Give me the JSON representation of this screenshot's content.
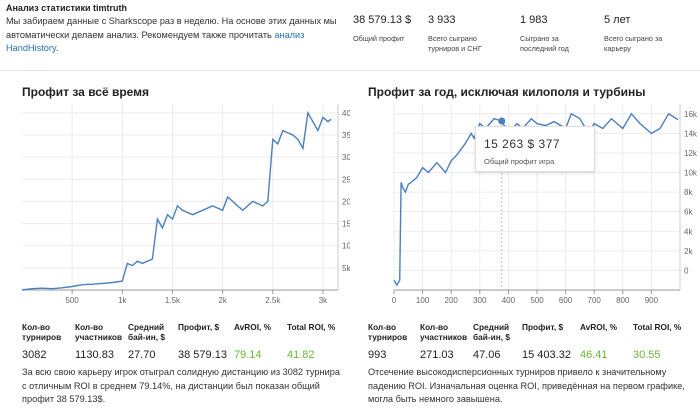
{
  "header": {
    "title": "Анализ статистики timtruth",
    "intro_text": "Мы забираем данные с Sharkscope раз в неделю. На основе этих данных мы автоматически делаем анализ. Рекомендуем также прочитать ",
    "intro_link": "анализ HandHistory",
    "intro_end": "."
  },
  "stats": [
    {
      "value": "38 579.13 $",
      "label": "Общий профит"
    },
    {
      "value": "3 933",
      "label": "Всего сыграно турниров и СНГ"
    },
    {
      "value": "1 983",
      "label": "Сыграно за последний год"
    },
    {
      "value": "5 лет",
      "label": "Всего сыграно за карьеру"
    }
  ],
  "left_panel": {
    "title": "Профит за всё время",
    "table": {
      "headers": [
        "Кол-во турниров",
        "Кол-во участников",
        "Средний бай-ин, $",
        "Профит, $",
        "AvROI, %",
        "Total ROI, %"
      ],
      "values": [
        "3082",
        "1130.83",
        "27.70",
        "38 579.13",
        "79.14",
        "41.82"
      ]
    },
    "footer": "За всю свою карьеру игрок отыграл солидную дистанцию из 3082 турнира с отличным ROI в среднем 79.14%, на дистанции был показан общий профит 38 579.13$."
  },
  "right_panel": {
    "title": "Профит за год, исключая килополя и турбины",
    "tooltip": {
      "value": "15 263 $  377",
      "label": "Общий профит  игра"
    },
    "table": {
      "headers": [
        "Кол-во турниров",
        "Кол-во участников",
        "Средний бай-ин, $",
        "Профит, $",
        "AvROI, %",
        "Total ROI, %"
      ],
      "values": [
        "993",
        "271.03",
        "47.06",
        "15 403.32",
        "46.41",
        "30.55"
      ]
    },
    "footer": "Отсечение высокодисперсионных турниров привело к значительному падению ROI. Изначальная оценка ROI, приведённая на первом графике, могла быть немного завышена."
  },
  "colors": {
    "line": "#4a7fc1",
    "accent_green": "#6ab53a",
    "link": "#2a6fb5"
  },
  "chart_data": [
    {
      "type": "line",
      "x": [
        0,
        100,
        200,
        300,
        400,
        500,
        600,
        700,
        800,
        900,
        1000,
        1050,
        1100,
        1150,
        1200,
        1300,
        1350,
        1400,
        1450,
        1500,
        1550,
        1600,
        1700,
        1800,
        1900,
        2000,
        2050,
        2100,
        2150,
        2200,
        2300,
        2400,
        2450,
        2500,
        2550,
        2600,
        2700,
        2750,
        2800,
        2850,
        2900,
        2950,
        3000,
        3050,
        3082
      ],
      "y": [
        0,
        300,
        400,
        300,
        500,
        800,
        1200,
        1300,
        1500,
        1700,
        2000,
        6000,
        5500,
        6500,
        6000,
        7000,
        16000,
        14000,
        17000,
        16000,
        19000,
        18000,
        17000,
        18000,
        19000,
        18000,
        21000,
        20000,
        19000,
        18000,
        20000,
        19000,
        20000,
        34000,
        33000,
        36000,
        35000,
        34000,
        32000,
        40000,
        38000,
        36000,
        39000,
        38000,
        38579
      ],
      "xticks": [
        "500",
        "1k",
        "1.5k",
        "2k",
        "2.5k",
        "3k"
      ],
      "yticks": [
        "5k",
        "10k",
        "15k",
        "20k",
        "25k",
        "30k",
        "35k",
        "40k"
      ],
      "xlim": [
        0,
        3150
      ],
      "ylim": [
        0,
        42000
      ]
    },
    {
      "type": "line",
      "x": [
        0,
        10,
        20,
        25,
        30,
        40,
        50,
        60,
        80,
        100,
        120,
        150,
        180,
        200,
        220,
        250,
        270,
        280,
        300,
        320,
        350,
        377,
        400,
        430,
        450,
        480,
        500,
        530,
        560,
        600,
        620,
        650,
        680,
        700,
        730,
        760,
        800,
        830,
        860,
        900,
        930,
        960,
        993
      ],
      "y": [
        -1000,
        -1500,
        -1000,
        9000,
        8500,
        8000,
        8800,
        9000,
        9500,
        10500,
        10000,
        11000,
        10000,
        11200,
        11800,
        13000,
        14000,
        13500,
        15000,
        14500,
        15500,
        15263,
        14000,
        15000,
        14500,
        15500,
        15000,
        14800,
        15200,
        14500,
        16000,
        15500,
        14000,
        15000,
        14500,
        15500,
        14500,
        16000,
        15000,
        14000,
        14500,
        16000,
        15403
      ],
      "xticks": [
        "0",
        "100",
        "200",
        "300",
        "400",
        "500",
        "600",
        "700",
        "800",
        "900"
      ],
      "yticks": [
        "0",
        "2k",
        "4k",
        "6k",
        "8k",
        "10k",
        "12k",
        "14k",
        "16k"
      ],
      "xlim": [
        0,
        1000
      ],
      "ylim": [
        -2000,
        17000
      ],
      "highlight": {
        "x": 377,
        "y": 15263
      }
    }
  ]
}
